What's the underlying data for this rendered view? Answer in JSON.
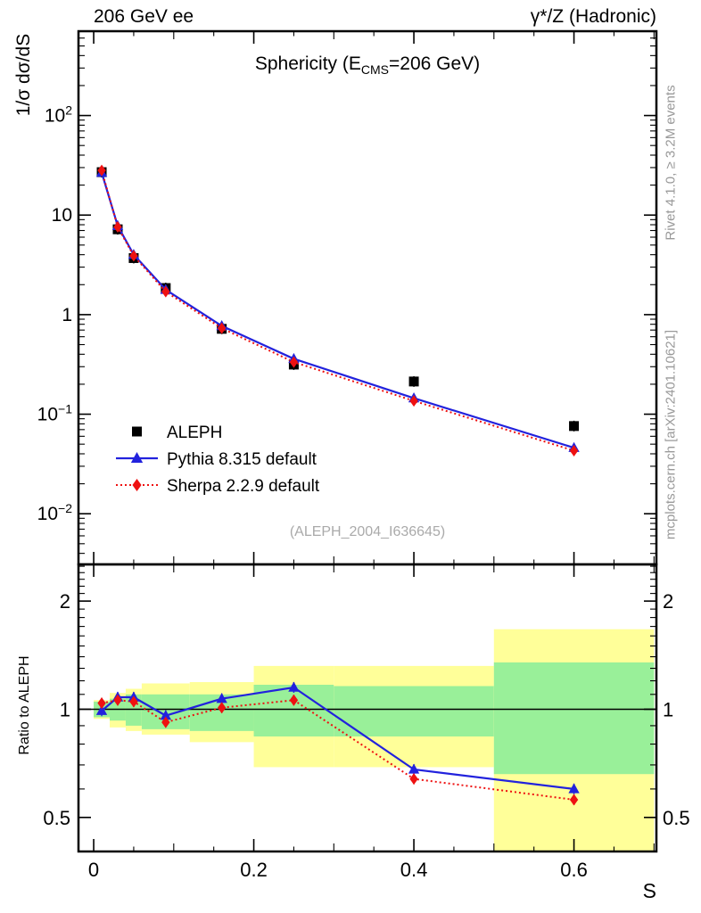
{
  "header": {
    "left": "206 GeV ee",
    "right": "γ*/Z (Hadronic)"
  },
  "title": {
    "part1": "Sphericity (E",
    "sub": "CMS",
    "part2": "=206 GeV)"
  },
  "watermark": "(ALEPH_2004_I636645)",
  "credits": {
    "top": "Rivet 4.1.0, ≥ 3.2M events",
    "bottom": "mcplots.cern.ch [arXiv:2401.10621]"
  },
  "axes": {
    "ylabel": "1/σ  dσ/dS",
    "ratio_ylabel": "Ratio to ALEPH",
    "xlabel": "S"
  },
  "colors": {
    "aleph": "#000000",
    "pythia": "#2222dd",
    "sherpa": "#ee1111",
    "band_yellow": "#ffff99",
    "band_green": "#99f099",
    "watermark_gray": "#aaaaaa",
    "credits_gray": "#999999"
  },
  "chart_data": {
    "type": "line",
    "title": "Sphericity (E_CMS=206 GeV)",
    "xlabel": "S",
    "ylabel": "1/σ dσ/dS",
    "xlim": [
      -0.019,
      0.703
    ],
    "ylim": [
      0.0031,
      703
    ],
    "ratio_ylim": [
      0.402,
      2.53
    ],
    "x": [
      0.01,
      0.03,
      0.05,
      0.09,
      0.16,
      0.25,
      0.4,
      0.6
    ],
    "bin_edges": [
      0,
      0.02,
      0.04,
      0.06,
      0.12,
      0.2,
      0.3,
      0.5,
      0.7
    ],
    "series": [
      {
        "name": "ALEPH",
        "color": "#000000",
        "marker": "square",
        "line": "none",
        "values": [
          27.0,
          7.2,
          3.7,
          1.85,
          0.72,
          0.315,
          0.213,
          0.076
        ]
      },
      {
        "name": "Pythia 8.315 default",
        "color": "#2222dd",
        "marker": "triangle",
        "line": "solid",
        "values": [
          26.7,
          7.8,
          4.0,
          1.78,
          0.77,
          0.36,
          0.145,
          0.046
        ]
      },
      {
        "name": "Sherpa 2.2.9 default",
        "color": "#ee1111",
        "marker": "diamond",
        "line": "dotted",
        "values": [
          28.1,
          7.6,
          3.9,
          1.7,
          0.73,
          0.334,
          0.136,
          0.043
        ]
      }
    ],
    "ratio": {
      "pythia": [
        0.99,
        1.08,
        1.08,
        0.96,
        1.07,
        1.15,
        0.68,
        0.6
      ],
      "sherpa": [
        1.04,
        1.06,
        1.05,
        0.92,
        1.01,
        1.06,
        0.64,
        0.56
      ],
      "bands": [
        {
          "bin": [
            0.0,
            0.02
          ],
          "yellow": [
            0.94,
            1.06
          ],
          "green": [
            0.95,
            1.05
          ]
        },
        {
          "bin": [
            0.02,
            0.04
          ],
          "yellow": [
            0.89,
            1.11
          ],
          "green": [
            0.93,
            1.07
          ]
        },
        {
          "bin": [
            0.04,
            0.06
          ],
          "yellow": [
            0.87,
            1.14
          ],
          "green": [
            0.9,
            1.1
          ]
        },
        {
          "bin": [
            0.06,
            0.12
          ],
          "yellow": [
            0.85,
            1.18
          ],
          "green": [
            0.88,
            1.1
          ]
        },
        {
          "bin": [
            0.12,
            0.2
          ],
          "yellow": [
            0.81,
            1.19
          ],
          "green": [
            0.87,
            1.1
          ]
        },
        {
          "bin": [
            0.2,
            0.3
          ],
          "yellow": [
            0.69,
            1.32
          ],
          "green": [
            0.84,
            1.17
          ]
        },
        {
          "bin": [
            0.3,
            0.5
          ],
          "yellow": [
            0.69,
            1.32
          ],
          "green": [
            0.84,
            1.16
          ]
        },
        {
          "bin": [
            0.5,
            0.7
          ],
          "yellow": [
            0.4,
            1.67
          ],
          "green": [
            0.66,
            1.35
          ]
        }
      ]
    },
    "xticks": {
      "major": [
        {
          "v": 0,
          "label": "0"
        },
        {
          "v": 0.2,
          "label": "0.2"
        },
        {
          "v": 0.4,
          "label": "0.4"
        },
        {
          "v": 0.6,
          "label": "0.6"
        }
      ],
      "medium": [
        0.1,
        0.3,
        0.5,
        0.7
      ],
      "minor": [
        0.05,
        0.15,
        0.25,
        0.35,
        0.45,
        0.55,
        0.65
      ]
    },
    "yticks": {
      "major": [
        {
          "v": 100,
          "base": "10",
          "exp": "2"
        },
        {
          "v": 10,
          "base": "10",
          "exp": ""
        },
        {
          "v": 1,
          "base": "1",
          "exp": ""
        },
        {
          "v": 0.1,
          "base": "10",
          "exp": "−1"
        },
        {
          "v": 0.01,
          "base": "10",
          "exp": "−2"
        }
      ]
    },
    "ratio_ticks": {
      "major": [
        {
          "v": 2,
          "label": "2"
        },
        {
          "v": 1,
          "label": "1"
        },
        {
          "v": 0.5,
          "label": "0.5"
        }
      ],
      "minor": [
        0.4,
        0.6,
        0.7,
        0.8,
        0.9,
        1.1,
        1.2,
        1.3,
        1.4,
        1.5,
        1.6,
        1.7,
        1.8,
        1.9,
        2.1,
        2.2,
        2.3,
        2.4,
        2.5
      ]
    },
    "legend_position": "upper-left-inside",
    "grid": false
  }
}
